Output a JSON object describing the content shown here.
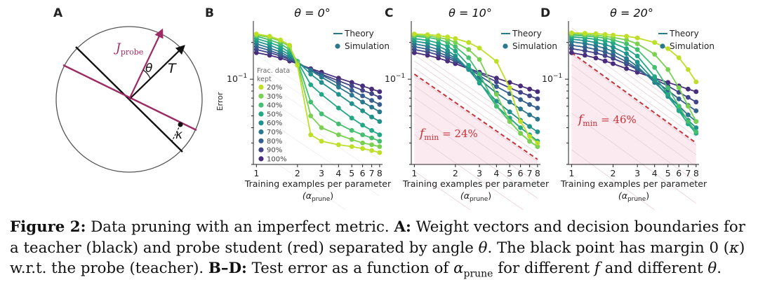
{
  "panels": {
    "A": {
      "letter": "A",
      "labels": {
        "j_probe": "J",
        "j_probe_sub": "probe",
        "theta": "θ",
        "teacher": "T",
        "kappa": "κ"
      },
      "colors": {
        "teacher": "#111111",
        "probe": "#9e2a63"
      }
    },
    "B": {
      "letter": "B",
      "title": "θ = 0°"
    },
    "C": {
      "letter": "C",
      "title": "θ = 10°",
      "fmin_label": "f",
      "fmin_sub": "min",
      "fmin_value": " = 24%"
    },
    "D": {
      "letter": "D",
      "title": "θ = 20°",
      "fmin_label": "f",
      "fmin_sub": "min",
      "fmin_value": " = 46%"
    }
  },
  "axes": {
    "ylabel": "Error",
    "ytick": "10",
    "ytick_exp": "−1",
    "xlabel_line1": "Training examples per parameter",
    "xlabel_line2": "(α",
    "xlabel_line2_sub": "prune",
    "xlabel_line2_end": ")",
    "xticks": [
      "1",
      "2",
      "3",
      "4",
      "5",
      "6",
      "7",
      "8"
    ]
  },
  "legend": {
    "theory": "Theory",
    "simulation": "Simulation"
  },
  "frac_legend": {
    "title_lines": [
      "Frac. data",
      "kept"
    ],
    "items": [
      "20%",
      "30%",
      "40%",
      "50%",
      "60%",
      "70%",
      "80%",
      "90%",
      "100%"
    ],
    "colors": [
      "#bddf26",
      "#7ad151",
      "#44bf70",
      "#22a884",
      "#21918c",
      "#2a788e",
      "#355f8d",
      "#414487",
      "#472d7b"
    ]
  },
  "caption": {
    "fig_label": "Figure 2:",
    "part1": " Data pruning with an imperfect metric. ",
    "a_label": "A:",
    "part2": " Weight vectors and decision boundaries for a teacher (black) and probe student (red) separated by angle ",
    "theta": "θ",
    "part3": ". The black point has margin 0 (",
    "kappa": "κ",
    "part4": ") w.r.t. the probe (teacher). ",
    "bd_label": "B–D:",
    "part5": " Test error as a function of ",
    "alpha": "α",
    "alpha_sub": "prune",
    "part6": " for different ",
    "f": "f",
    "part7": " and different ",
    "theta2": "θ",
    "part8": "."
  },
  "chart_data": [
    {
      "type": "line",
      "panel": "B",
      "title": "θ = 0°",
      "xlabel": "Training examples per parameter (α_prune)",
      "ylabel": "Error",
      "xscale": "log",
      "yscale": "log",
      "xlim": [
        0.95,
        8.4
      ],
      "ylim": [
        0.02,
        0.3
      ],
      "legend_title": "Frac. data kept",
      "series": [
        {
          "name": "20%",
          "x": [
            1,
            1.25,
            1.5,
            1.75,
            2,
            2.5,
            3,
            4,
            5,
            6,
            7,
            8
          ],
          "values": [
            0.235,
            0.225,
            0.21,
            0.19,
            0.13,
            0.035,
            0.031,
            0.029,
            0.028,
            0.027,
            0.026,
            0.025
          ]
        },
        {
          "name": "30%",
          "x": [
            1,
            1.25,
            1.5,
            1.75,
            2,
            2.5,
            3,
            4,
            5,
            6,
            7,
            8
          ],
          "values": [
            0.23,
            0.22,
            0.205,
            0.185,
            0.135,
            0.05,
            0.04,
            0.035,
            0.032,
            0.03,
            0.029,
            0.028
          ]
        },
        {
          "name": "40%",
          "x": [
            1,
            1.25,
            1.5,
            1.75,
            2,
            2.5,
            3,
            4,
            5,
            6,
            7,
            8
          ],
          "values": [
            0.225,
            0.21,
            0.195,
            0.175,
            0.14,
            0.065,
            0.052,
            0.043,
            0.038,
            0.035,
            0.033,
            0.031
          ]
        },
        {
          "name": "50%",
          "x": [
            1,
            1.25,
            1.5,
            1.75,
            2,
            2.5,
            3,
            4,
            5,
            6,
            7,
            8
          ],
          "values": [
            0.215,
            0.2,
            0.185,
            0.165,
            0.14,
            0.09,
            0.075,
            0.058,
            0.048,
            0.042,
            0.038,
            0.035
          ]
        },
        {
          "name": "60%",
          "x": [
            1,
            1.25,
            1.5,
            1.75,
            2,
            2.5,
            3,
            4,
            5,
            6,
            7,
            8
          ],
          "values": [
            0.205,
            0.19,
            0.175,
            0.158,
            0.14,
            0.11,
            0.094,
            0.075,
            0.063,
            0.055,
            0.049,
            0.045
          ]
        },
        {
          "name": "70%",
          "x": [
            1,
            1.25,
            1.5,
            1.75,
            2,
            2.5,
            3,
            4,
            5,
            6,
            7,
            8
          ],
          "values": [
            0.195,
            0.18,
            0.167,
            0.152,
            0.138,
            0.118,
            0.104,
            0.086,
            0.074,
            0.065,
            0.059,
            0.054
          ]
        },
        {
          "name": "80%",
          "x": [
            1,
            1.25,
            1.5,
            1.75,
            2,
            2.5,
            3,
            4,
            5,
            6,
            7,
            8
          ],
          "values": [
            0.185,
            0.172,
            0.16,
            0.148,
            0.136,
            0.119,
            0.108,
            0.092,
            0.081,
            0.073,
            0.067,
            0.062
          ]
        },
        {
          "name": "90%",
          "x": [
            1,
            1.25,
            1.5,
            1.75,
            2,
            2.5,
            3,
            4,
            5,
            6,
            7,
            8
          ],
          "values": [
            0.175,
            0.165,
            0.155,
            0.145,
            0.135,
            0.12,
            0.11,
            0.097,
            0.088,
            0.081,
            0.076,
            0.071
          ]
        },
        {
          "name": "100%",
          "x": [
            1,
            1.25,
            1.5,
            1.75,
            2,
            2.5,
            3,
            4,
            5,
            6,
            7,
            8
          ],
          "values": [
            0.165,
            0.157,
            0.149,
            0.141,
            0.134,
            0.122,
            0.114,
            0.102,
            0.094,
            0.088,
            0.083,
            0.079
          ]
        }
      ]
    },
    {
      "type": "line",
      "panel": "C",
      "title": "θ = 10°",
      "xlabel": "Training examples per parameter (α_prune)",
      "ylabel": "Error",
      "xscale": "log",
      "yscale": "log",
      "xlim": [
        0.95,
        8.4
      ],
      "ylim": [
        0.02,
        0.3
      ],
      "annotation": "f_min = 24%",
      "fmin_line": {
        "x": [
          1,
          8
        ],
        "values": [
          0.11,
          0.022
        ]
      },
      "series": [
        {
          "name": "20%",
          "x": [
            1,
            1.25,
            1.5,
            1.75,
            2,
            2.5,
            3,
            4,
            5,
            6,
            7,
            8
          ],
          "values": [
            0.235,
            0.232,
            0.228,
            0.222,
            0.215,
            0.2,
            0.18,
            0.14,
            0.085,
            0.045,
            0.034,
            0.03
          ]
        },
        {
          "name": "30%",
          "x": [
            1,
            1.25,
            1.5,
            1.75,
            2,
            2.5,
            3,
            4,
            5,
            6,
            7,
            8
          ],
          "values": [
            0.23,
            0.226,
            0.22,
            0.212,
            0.2,
            0.175,
            0.145,
            0.075,
            0.045,
            0.036,
            0.031,
            0.028
          ]
        },
        {
          "name": "40%",
          "x": [
            1,
            1.25,
            1.5,
            1.75,
            2,
            2.5,
            3,
            4,
            5,
            6,
            7,
            8
          ],
          "values": [
            0.225,
            0.22,
            0.212,
            0.2,
            0.185,
            0.15,
            0.11,
            0.06,
            0.045,
            0.036,
            0.031,
            0.028
          ]
        },
        {
          "name": "50%",
          "x": [
            1,
            1.25,
            1.5,
            1.75,
            2,
            2.5,
            3,
            4,
            5,
            6,
            7,
            8
          ],
          "values": [
            0.215,
            0.208,
            0.198,
            0.186,
            0.17,
            0.13,
            0.095,
            0.06,
            0.048,
            0.04,
            0.035,
            0.031
          ]
        },
        {
          "name": "60%",
          "x": [
            1,
            1.25,
            1.5,
            1.75,
            2,
            2.5,
            3,
            4,
            5,
            6,
            7,
            8
          ],
          "values": [
            0.205,
            0.197,
            0.186,
            0.172,
            0.155,
            0.12,
            0.093,
            0.066,
            0.054,
            0.046,
            0.041,
            0.037
          ]
        },
        {
          "name": "70%",
          "x": [
            1,
            1.25,
            1.5,
            1.75,
            2,
            2.5,
            3,
            4,
            5,
            6,
            7,
            8
          ],
          "values": [
            0.195,
            0.186,
            0.175,
            0.162,
            0.148,
            0.12,
            0.1,
            0.077,
            0.065,
            0.057,
            0.051,
            0.047
          ]
        },
        {
          "name": "80%",
          "x": [
            1,
            1.25,
            1.5,
            1.75,
            2,
            2.5,
            3,
            4,
            5,
            6,
            7,
            8
          ],
          "values": [
            0.185,
            0.176,
            0.166,
            0.155,
            0.144,
            0.123,
            0.107,
            0.087,
            0.076,
            0.068,
            0.062,
            0.058
          ]
        },
        {
          "name": "90%",
          "x": [
            1,
            1.25,
            1.5,
            1.75,
            2,
            2.5,
            3,
            4,
            5,
            6,
            7,
            8
          ],
          "values": [
            0.175,
            0.167,
            0.158,
            0.149,
            0.14,
            0.124,
            0.112,
            0.095,
            0.085,
            0.078,
            0.073,
            0.069
          ]
        },
        {
          "name": "100%",
          "x": [
            1,
            1.25,
            1.5,
            1.75,
            2,
            2.5,
            3,
            4,
            5,
            6,
            7,
            8
          ],
          "values": [
            0.165,
            0.157,
            0.149,
            0.141,
            0.134,
            0.122,
            0.114,
            0.102,
            0.094,
            0.088,
            0.083,
            0.079
          ]
        }
      ]
    },
    {
      "type": "line",
      "panel": "D",
      "title": "θ = 20°",
      "xlabel": "Training examples per parameter (α_prune)",
      "ylabel": "Error",
      "xscale": "log",
      "yscale": "log",
      "xlim": [
        0.95,
        8.4
      ],
      "ylim": [
        0.02,
        0.3
      ],
      "annotation": "f_min = 46%",
      "fmin_line": {
        "x": [
          1,
          8
        ],
        "values": [
          0.165,
          0.03
        ]
      },
      "series": [
        {
          "name": "20%",
          "x": [
            1,
            1.25,
            1.5,
            1.75,
            2,
            2.5,
            3,
            4,
            5,
            6,
            7,
            8
          ],
          "values": [
            0.24,
            0.238,
            0.236,
            0.233,
            0.23,
            0.225,
            0.218,
            0.2,
            0.178,
            0.15,
            0.12,
            0.095
          ]
        },
        {
          "name": "30%",
          "x": [
            1,
            1.25,
            1.5,
            1.75,
            2,
            2.5,
            3,
            4,
            5,
            6,
            7,
            8
          ],
          "values": [
            0.235,
            0.232,
            0.229,
            0.225,
            0.22,
            0.21,
            0.195,
            0.16,
            0.12,
            0.085,
            0.06,
            0.045
          ]
        },
        {
          "name": "40%",
          "x": [
            1,
            1.25,
            1.5,
            1.75,
            2,
            2.5,
            3,
            4,
            5,
            6,
            7,
            8
          ],
          "values": [
            0.23,
            0.226,
            0.222,
            0.217,
            0.21,
            0.195,
            0.175,
            0.125,
            0.085,
            0.06,
            0.045,
            0.037
          ]
        },
        {
          "name": "50%",
          "x": [
            1,
            1.25,
            1.5,
            1.75,
            2,
            2.5,
            3,
            4,
            5,
            6,
            7,
            8
          ],
          "values": [
            0.222,
            0.218,
            0.212,
            0.206,
            0.198,
            0.178,
            0.155,
            0.105,
            0.075,
            0.055,
            0.043,
            0.036
          ]
        },
        {
          "name": "60%",
          "x": [
            1,
            1.25,
            1.5,
            1.75,
            2,
            2.5,
            3,
            4,
            5,
            6,
            7,
            8
          ],
          "values": [
            0.213,
            0.207,
            0.2,
            0.192,
            0.183,
            0.162,
            0.138,
            0.097,
            0.072,
            0.056,
            0.046,
            0.04
          ]
        },
        {
          "name": "70%",
          "x": [
            1,
            1.25,
            1.5,
            1.75,
            2,
            2.5,
            3,
            4,
            5,
            6,
            7,
            8
          ],
          "values": [
            0.203,
            0.196,
            0.188,
            0.179,
            0.169,
            0.148,
            0.127,
            0.094,
            0.074,
            0.06,
            0.051,
            0.045
          ]
        },
        {
          "name": "80%",
          "x": [
            1,
            1.25,
            1.5,
            1.75,
            2,
            2.5,
            3,
            4,
            5,
            6,
            7,
            8
          ],
          "values": [
            0.19,
            0.183,
            0.175,
            0.167,
            0.158,
            0.139,
            0.122,
            0.097,
            0.081,
            0.069,
            0.061,
            0.055
          ]
        },
        {
          "name": "90%",
          "x": [
            1,
            1.25,
            1.5,
            1.75,
            2,
            2.5,
            3,
            4,
            5,
            6,
            7,
            8
          ],
          "values": [
            0.178,
            0.171,
            0.164,
            0.156,
            0.148,
            0.133,
            0.12,
            0.1,
            0.088,
            0.078,
            0.071,
            0.065
          ]
        },
        {
          "name": "100%",
          "x": [
            1,
            1.25,
            1.5,
            1.75,
            2,
            2.5,
            3,
            4,
            5,
            6,
            7,
            8
          ],
          "values": [
            0.165,
            0.157,
            0.149,
            0.141,
            0.134,
            0.122,
            0.114,
            0.102,
            0.094,
            0.088,
            0.083,
            0.079
          ]
        }
      ]
    }
  ]
}
